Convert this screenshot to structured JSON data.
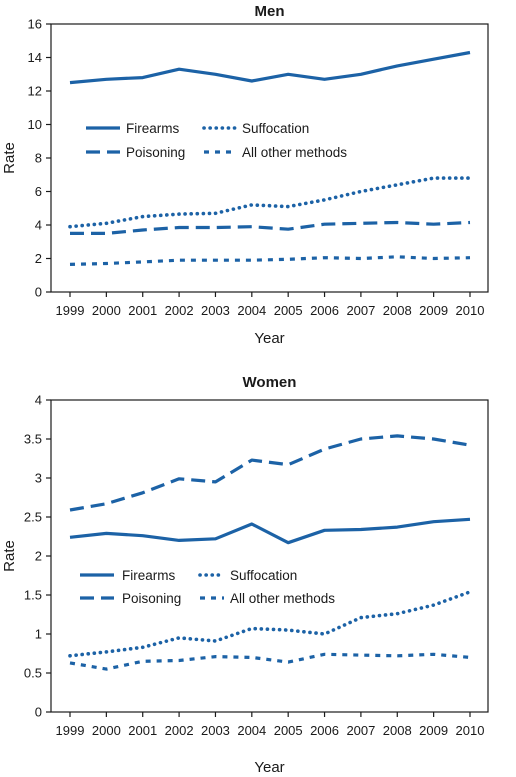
{
  "chart_data": [
    {
      "type": "line",
      "title": "Men",
      "xlabel": "Year",
      "ylabel": "Rate",
      "ylim": [
        0,
        16
      ],
      "yticks": [
        "0",
        "2",
        "4",
        "6",
        "8",
        "10",
        "12",
        "14",
        "16"
      ],
      "x": [
        "1999",
        "2000",
        "2001",
        "2002",
        "2003",
        "2004",
        "2005",
        "2006",
        "2007",
        "2008",
        "2009",
        "2010"
      ],
      "grid": false,
      "legend_position": "middle-left",
      "series": [
        {
          "name": "Firearms",
          "style": "solid",
          "values": [
            12.5,
            12.7,
            12.8,
            13.3,
            13.0,
            12.6,
            13.0,
            12.7,
            13.0,
            13.5,
            13.9,
            14.3
          ]
        },
        {
          "name": "Poisoning",
          "style": "dashed",
          "values": [
            3.5,
            3.5,
            3.7,
            3.85,
            3.85,
            3.9,
            3.75,
            4.05,
            4.1,
            4.15,
            4.05,
            4.15
          ]
        },
        {
          "name": "Suffocation",
          "style": "dotted",
          "values": [
            3.9,
            4.1,
            4.5,
            4.65,
            4.7,
            5.2,
            5.1,
            5.5,
            6.0,
            6.4,
            6.8,
            6.8
          ]
        },
        {
          "name": "All other methods",
          "style": "short-dashed",
          "values": [
            1.65,
            1.7,
            1.8,
            1.9,
            1.9,
            1.9,
            1.95,
            2.05,
            2.0,
            2.1,
            2.0,
            2.05
          ]
        }
      ]
    },
    {
      "type": "line",
      "title": "Women",
      "xlabel": "Year",
      "ylabel": "Rate",
      "ylim": [
        0,
        4
      ],
      "yticks": [
        "0",
        "0.5",
        "1",
        "1.5",
        "2",
        "2.5",
        "3",
        "3.5",
        "4"
      ],
      "x": [
        "1999",
        "2000",
        "2001",
        "2002",
        "2003",
        "2004",
        "2005",
        "2006",
        "2007",
        "2008",
        "2009",
        "2010"
      ],
      "grid": false,
      "legend_position": "lower-left",
      "series": [
        {
          "name": "Firearms",
          "style": "solid",
          "values": [
            2.24,
            2.29,
            2.26,
            2.2,
            2.22,
            2.41,
            2.17,
            2.33,
            2.34,
            2.37,
            2.44,
            2.47
          ]
        },
        {
          "name": "Poisoning",
          "style": "dashed",
          "values": [
            2.59,
            2.67,
            2.81,
            2.99,
            2.95,
            3.23,
            3.17,
            3.37,
            3.5,
            3.54,
            3.5,
            3.42
          ]
        },
        {
          "name": "Suffocation",
          "style": "dotted",
          "values": [
            0.72,
            0.77,
            0.83,
            0.95,
            0.91,
            1.07,
            1.05,
            1.0,
            1.21,
            1.26,
            1.37,
            1.54
          ]
        },
        {
          "name": "All other methods",
          "style": "short-dashed",
          "values": [
            0.63,
            0.55,
            0.65,
            0.66,
            0.71,
            0.7,
            0.64,
            0.74,
            0.73,
            0.72,
            0.74,
            0.7
          ]
        }
      ]
    }
  ],
  "colors": {
    "line": "#1c62a6",
    "axis": "#1a1a1a",
    "background": "#ffffff"
  }
}
